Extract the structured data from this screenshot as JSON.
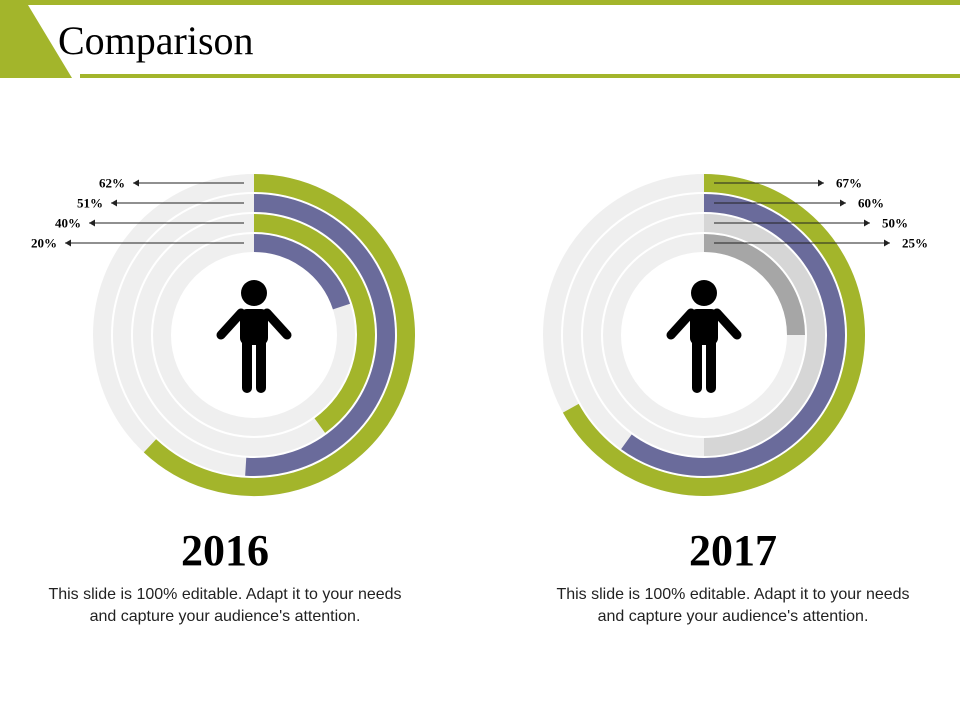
{
  "slide": {
    "title": "Comparison",
    "accent_color": "#a3b52b"
  },
  "chart_data": [
    {
      "type": "radial-bar",
      "title": "2016",
      "caption": "This slide is 100% editable. Adapt it to your needs and capture your audience's attention.",
      "icon": "person-icon",
      "values_percent": [
        62,
        51,
        40,
        20
      ],
      "labels": [
        "62%",
        "51%",
        "40%",
        "20%"
      ],
      "colors": [
        "#a3b52b",
        "#6a6b9b",
        "#a3b52b",
        "#6a6b9b"
      ],
      "track_color": "#efefef",
      "label_side": "left"
    },
    {
      "type": "radial-bar",
      "title": "2017",
      "caption": "This slide is 100% editable. Adapt it to your needs and capture your audience's attention.",
      "icon": "person-icon",
      "values_percent": [
        67,
        60,
        50,
        25
      ],
      "labels": [
        "67%",
        "60%",
        "50%",
        "25%"
      ],
      "colors": [
        "#a3b52b",
        "#6a6b9b",
        "#d6d6d6",
        "#a6a6a6"
      ],
      "track_color": "#efefef",
      "label_side": "right"
    }
  ]
}
